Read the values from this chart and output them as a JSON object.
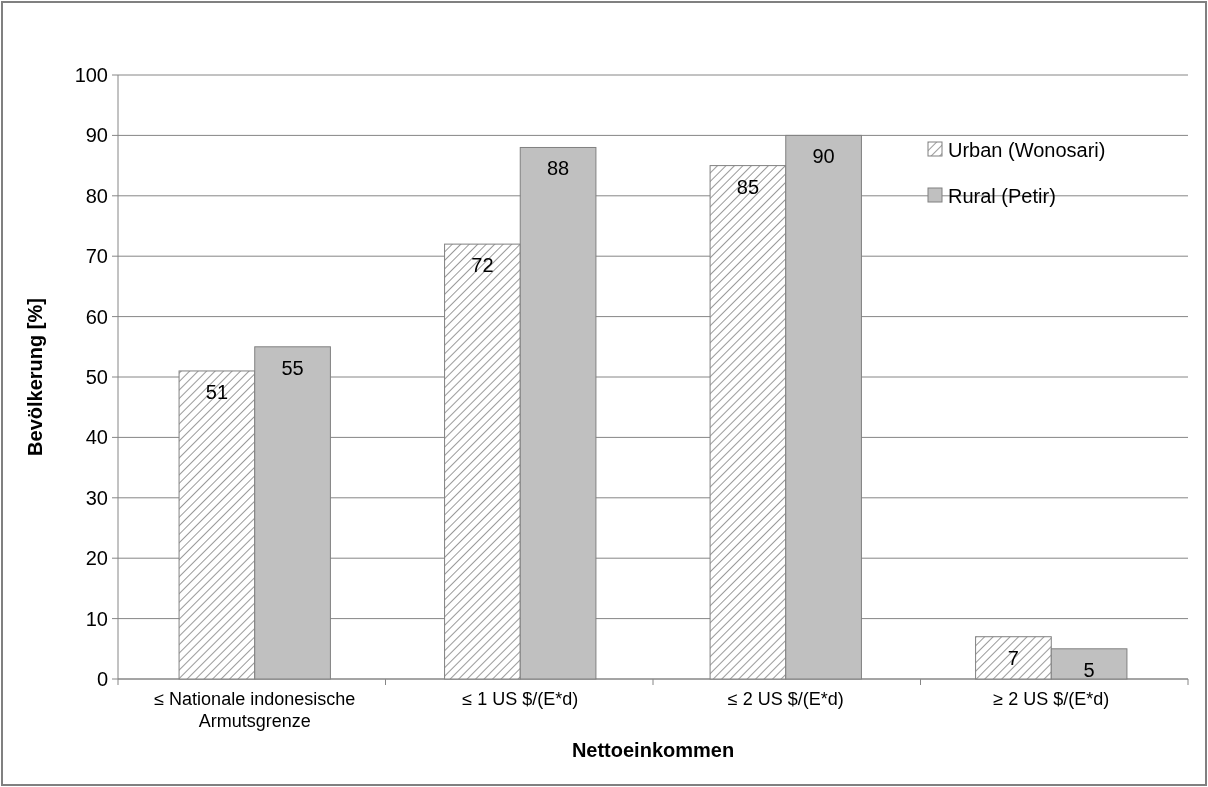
{
  "chart_data": {
    "type": "bar",
    "xlabel": "Nettoeinkommen",
    "ylabel": "Bevölkerung [%]",
    "categories": [
      "≤ Nationale indonesische Armutsgrenze",
      "≤ 1 US $/(E*d)",
      "≤ 2 US $/(E*d)",
      "≥ 2 US $/(E*d)"
    ],
    "series": [
      {
        "name": "Urban (Wonosari)",
        "color": "#808080",
        "values": [
          51,
          72,
          85,
          7
        ]
      },
      {
        "name": "Rural (Petir)",
        "color": "#c0c0c0",
        "values": [
          55,
          88,
          90,
          5
        ]
      }
    ],
    "ylim": [
      0,
      100
    ],
    "yticks": [
      0,
      10,
      20,
      30,
      40,
      50,
      60,
      70,
      80,
      90,
      100
    ],
    "grid": "y",
    "legend": "top right",
    "data_labels": true
  }
}
